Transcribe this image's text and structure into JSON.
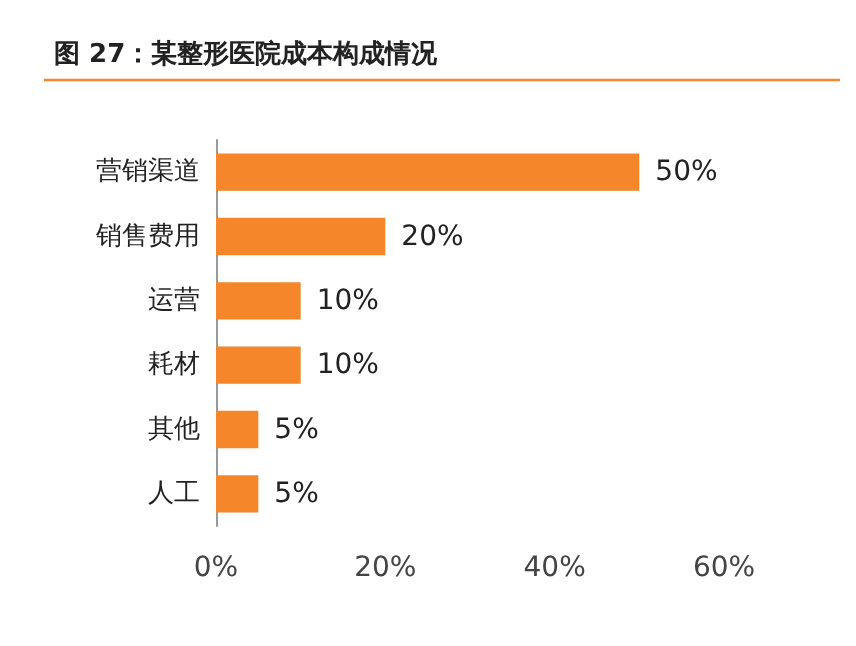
{
  "chart_data": {
    "type": "bar",
    "orientation": "horizontal",
    "title": "图 27：某整形医院成本构成情况",
    "categories": [
      "营销渠道",
      "销售费用",
      "运营",
      "耗材",
      "其他",
      "人工"
    ],
    "values": [
      50,
      20,
      10,
      10,
      5,
      5
    ],
    "value_labels": [
      "50%",
      "20%",
      "10%",
      "10%",
      "5%",
      "5%"
    ],
    "color": "#f5862a",
    "xlim": [
      0,
      60
    ],
    "xticks": [
      {
        "value": 0,
        "label": "0%"
      },
      {
        "value": 20,
        "label": "20%"
      },
      {
        "value": 40,
        "label": "40%"
      },
      {
        "value": 60,
        "label": "60%"
      }
    ],
    "grid": false
  }
}
